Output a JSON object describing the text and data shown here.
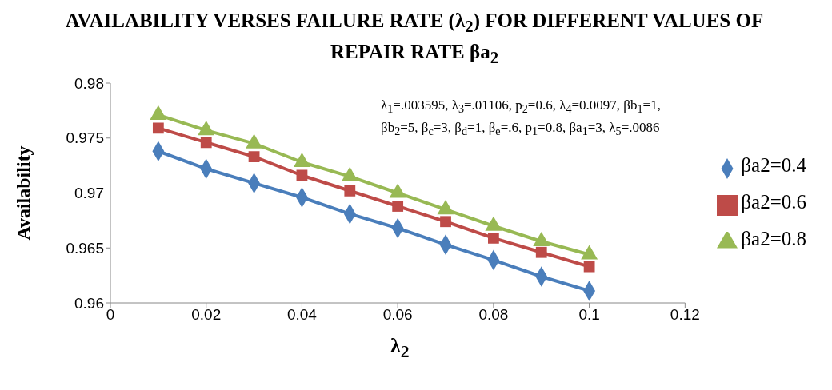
{
  "chart_data": {
    "type": "line",
    "title": "AVAILABILITY  VERSES FAILURE RATE (λ$_{2}$) FOR DIFFERENT VALUES OF REPAIR RATE βa$_{2}$",
    "xlabel": "λ$_{2}$",
    "ylabel": "Availability",
    "annotations": [
      "λ$_{1}$=.003595, λ$_{3}$=.01106, p$_{2}$=0.6,  λ$_{4}$=0.0097, βb$_{1}$=1, βb$_{2}$=5, β$_{c}$=3, β$_{d}$=1, β$_{e}$=.6, p$_{1}$=0.8, βa$_{1}$=3, λ$_{5}$=.0086"
    ],
    "x": [
      0.01,
      0.02,
      0.03,
      0.04,
      0.05,
      0.06,
      0.07,
      0.08,
      0.09,
      0.1
    ],
    "series": [
      {
        "name": "βa2=0.4",
        "color": "#4a7ebb",
        "marker": "diamond",
        "values": [
          0.9738,
          0.9722,
          0.9709,
          0.9696,
          0.9681,
          0.9668,
          0.9653,
          0.9639,
          0.9624,
          0.9611
        ]
      },
      {
        "name": "βa2=0.6",
        "color": "#be4b48",
        "marker": "square",
        "values": [
          0.9759,
          0.9746,
          0.9733,
          0.9716,
          0.9702,
          0.9688,
          0.9674,
          0.9659,
          0.9646,
          0.9633
        ]
      },
      {
        "name": "βa2=0.8",
        "color": "#98b954",
        "marker": "triangle",
        "values": [
          0.9771,
          0.9757,
          0.9745,
          0.9728,
          0.9715,
          0.97,
          0.9685,
          0.967,
          0.9656,
          0.9644
        ]
      }
    ],
    "xlim": [
      0,
      0.12
    ],
    "xticks": [
      0,
      0.02,
      0.04,
      0.06,
      0.08,
      0.1,
      0.12
    ],
    "ylim": [
      0.96,
      0.98
    ],
    "yticks": [
      0.96,
      0.965,
      0.97,
      0.975,
      0.98
    ],
    "grid": false,
    "legend": "right",
    "line_style": "solid"
  }
}
